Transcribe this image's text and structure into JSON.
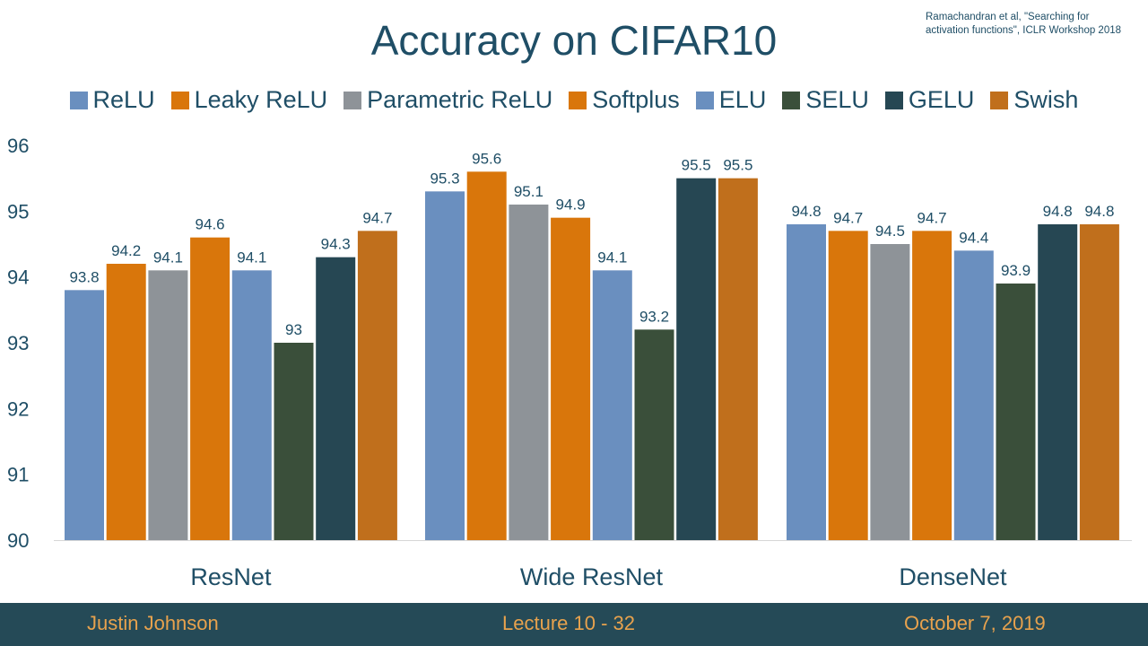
{
  "slide": {
    "title": "Accuracy on CIFAR10",
    "citation_line1": "Ramachandran et al, \"Searching for",
    "citation_line2": "activation functions\", ICLR Workshop 2018"
  },
  "footer": {
    "author": "Justin Johnson",
    "lecture": "Lecture 10 - 32",
    "date": "October 7, 2019"
  },
  "chart_data": {
    "type": "bar",
    "title": "Accuracy on CIFAR10",
    "categories": [
      "ResNet",
      "Wide ResNet",
      "DenseNet"
    ],
    "ylim": [
      90,
      96
    ],
    "yticks": [
      "90",
      "91",
      "92",
      "93",
      "94",
      "95",
      "96"
    ],
    "grid": false,
    "legend_placement": "top",
    "series": [
      {
        "name": "ReLU",
        "values": [
          93.8,
          95.3,
          94.8
        ],
        "color": "#6a8fbf",
        "labels": [
          "93.8",
          "95.3",
          "94.8"
        ]
      },
      {
        "name": "Leaky ReLU",
        "values": [
          94.2,
          95.6,
          94.7
        ],
        "color": "#d9760b",
        "labels": [
          "94.2",
          "95.6",
          "94.7"
        ]
      },
      {
        "name": "Parametric ReLU",
        "values": [
          94.1,
          95.1,
          94.5
        ],
        "color": "#8e9398",
        "labels": [
          "94.1",
          "95.1",
          "94.5"
        ]
      },
      {
        "name": "Softplus",
        "values": [
          94.6,
          94.9,
          94.7
        ],
        "color": "#d9760b",
        "labels": [
          "94.6",
          "94.9",
          "94.7"
        ]
      },
      {
        "name": "ELU",
        "values": [
          94.1,
          94.1,
          94.4
        ],
        "color": "#6a8fbf",
        "labels": [
          "94.1",
          "94.1",
          "94.4"
        ]
      },
      {
        "name": "SELU",
        "values": [
          93.0,
          93.2,
          93.9
        ],
        "color": "#3a4f3a",
        "labels": [
          "93",
          "93.2",
          "93.9"
        ]
      },
      {
        "name": "GELU",
        "values": [
          94.3,
          95.5,
          94.8
        ],
        "color": "#264753",
        "labels": [
          "94.3",
          "95.5",
          "94.8"
        ]
      },
      {
        "name": "Swish",
        "values": [
          94.7,
          95.5,
          94.8
        ],
        "color": "#c06f1c",
        "labels": [
          "94.7",
          "95.5",
          "94.8"
        ]
      }
    ]
  }
}
